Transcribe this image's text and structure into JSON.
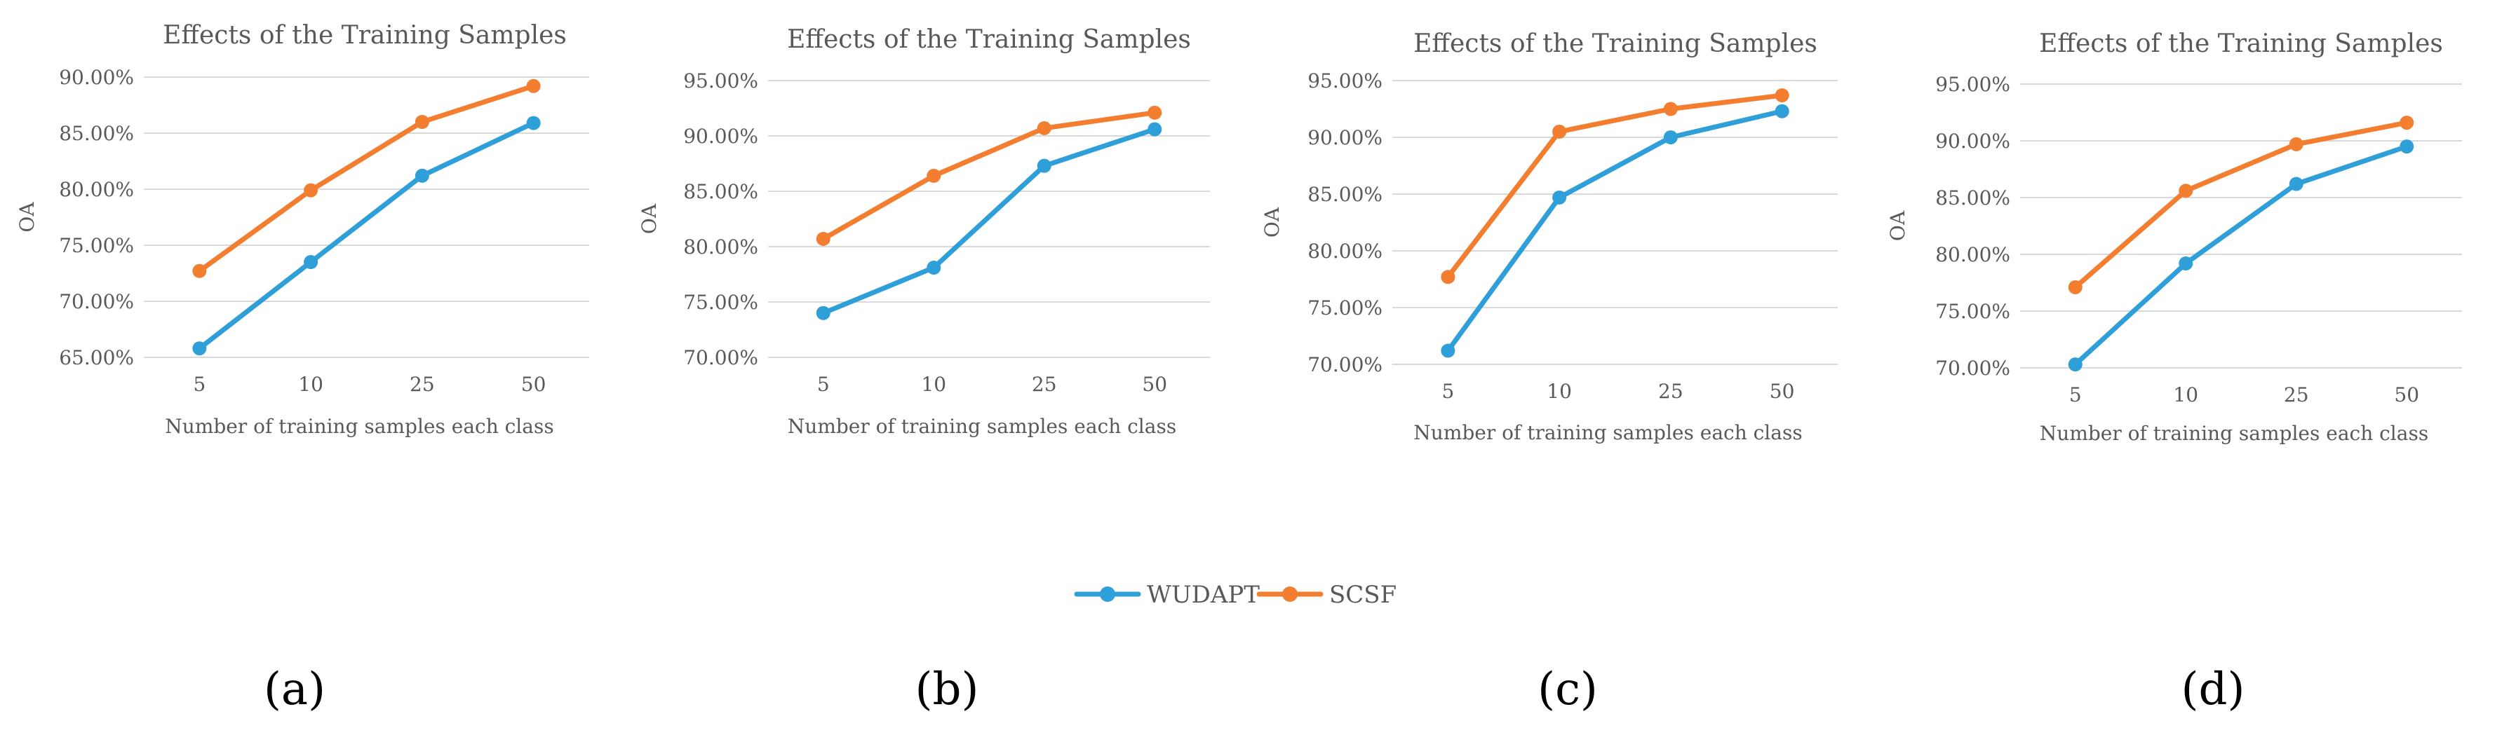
{
  "colors": {
    "wudapt": "#2E9FD8",
    "scsf": "#F47E2F"
  },
  "legend": {
    "items": [
      "WUDAPT",
      "SCSF"
    ]
  },
  "chart_data": [
    {
      "type": "line",
      "panel_label": "(a)",
      "title": "Effects of the Training Samples",
      "xlabel": "Number of training samples each class",
      "ylabel": "OA",
      "categories": [
        "5",
        "10",
        "25",
        "50"
      ],
      "ylim": [
        65,
        90
      ],
      "yticks": [
        65,
        70,
        75,
        80,
        85,
        90
      ],
      "ytick_labels": [
        "65.00%",
        "70.00%",
        "75.00%",
        "80.00%",
        "85.00%",
        "90.00%"
      ],
      "series": [
        {
          "name": "WUDAPT",
          "values": [
            65.8,
            73.5,
            81.2,
            85.9
          ]
        },
        {
          "name": "SCSF",
          "values": [
            72.7,
            79.9,
            86.0,
            89.2
          ]
        }
      ]
    },
    {
      "type": "line",
      "panel_label": "(b)",
      "title": "Effects of the Training Samples",
      "xlabel": "Number of training samples each class",
      "ylabel": "OA",
      "categories": [
        "5",
        "10",
        "25",
        "50"
      ],
      "ylim": [
        70,
        95
      ],
      "yticks": [
        70,
        75,
        80,
        85,
        90,
        95
      ],
      "ytick_labels": [
        "70.00%",
        "75.00%",
        "80.00%",
        "85.00%",
        "90.00%",
        "95.00%"
      ],
      "series": [
        {
          "name": "WUDAPT",
          "values": [
            74.0,
            78.1,
            87.3,
            90.6
          ]
        },
        {
          "name": "SCSF",
          "values": [
            80.7,
            86.4,
            90.7,
            92.1
          ]
        }
      ]
    },
    {
      "type": "line",
      "panel_label": "(c)",
      "title": "Effects of the Training Samples",
      "xlabel": "Number of training samples each class",
      "ylabel": "OA",
      "categories": [
        "5",
        "10",
        "25",
        "50"
      ],
      "ylim": [
        70,
        95
      ],
      "yticks": [
        70,
        75,
        80,
        85,
        90,
        95
      ],
      "ytick_labels": [
        "70.00%",
        "75.00%",
        "80.00%",
        "85.00%",
        "90.00%",
        "95.00%"
      ],
      "series": [
        {
          "name": "WUDAPT",
          "values": [
            71.2,
            84.7,
            90.0,
            92.3
          ]
        },
        {
          "name": "SCSF",
          "values": [
            77.7,
            90.5,
            92.5,
            93.7
          ]
        }
      ]
    },
    {
      "type": "line",
      "panel_label": "(d)",
      "title": "Effects of the Training Samples",
      "xlabel": "Number of training samples each class",
      "ylabel": "OA",
      "categories": [
        "5",
        "10",
        "25",
        "50"
      ],
      "ylim": [
        70,
        95
      ],
      "yticks": [
        70,
        75,
        80,
        85,
        90,
        95
      ],
      "ytick_labels": [
        "70.00%",
        "75.00%",
        "80.00%",
        "85.00%",
        "90.00%",
        "95.00%"
      ],
      "series": [
        {
          "name": "WUDAPT",
          "values": [
            70.3,
            79.2,
            86.2,
            89.5
          ]
        },
        {
          "name": "SCSF",
          "values": [
            77.1,
            85.6,
            89.7,
            91.6
          ]
        }
      ]
    }
  ]
}
